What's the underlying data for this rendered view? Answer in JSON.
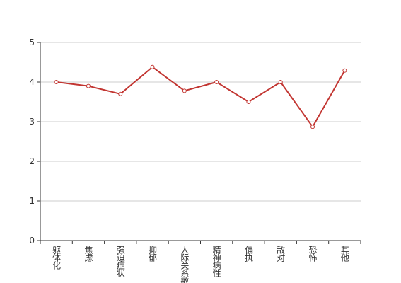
{
  "chart_data": {
    "type": "line",
    "categories": [
      "躯体化",
      "焦虑",
      "强迫症状",
      "抑郁",
      "人际关系敏感",
      "精神病性",
      "偏执",
      "敌对",
      "恐怖",
      "其他"
    ],
    "series": [
      {
        "color": "#c23531",
        "values": [
          4.0,
          3.9,
          3.7,
          4.38,
          3.78,
          4.0,
          3.5,
          4.0,
          2.87,
          4.29
        ]
      }
    ],
    "ylim": [
      0,
      5
    ],
    "yticks": [
      0,
      1,
      2,
      3,
      4,
      5
    ],
    "grid": true
  }
}
